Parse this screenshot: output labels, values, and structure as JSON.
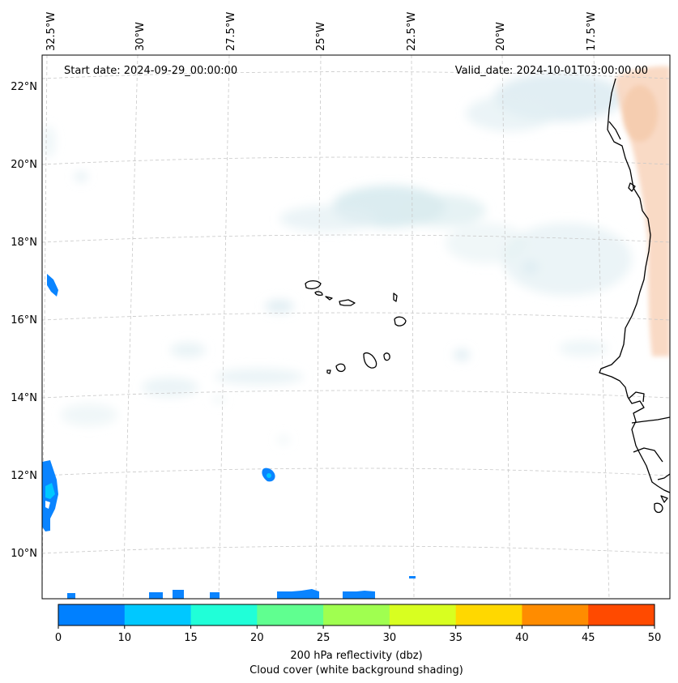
{
  "map": {
    "start_date": "Start date: 2024-09-29_00:00:00",
    "valid_date": "Valid_date: 2024-10-01T03:00:00.00",
    "lon_labels": [
      "32.5°W",
      "30°W",
      "27.5°W",
      "25°W",
      "22.5°W",
      "20°W",
      "17.5°W"
    ],
    "lat_labels": [
      "22°N",
      "20°N",
      "18°N",
      "16°N",
      "14°N",
      "12°N",
      "10°N"
    ]
  },
  "colorbar": {
    "ticks": [
      "0",
      "10",
      "15",
      "20",
      "25",
      "30",
      "35",
      "40",
      "45",
      "50"
    ],
    "colors": [
      "#0080ff",
      "#00c8ff",
      "#20ffd8",
      "#60ff90",
      "#a0ff50",
      "#d8ff20",
      "#ffd800",
      "#ff8c00",
      "#ff4a00"
    ],
    "label_line1": "200 hPa reflectivity (dbz)",
    "label_line2": "Cloud cover (white background shading)"
  },
  "colors": {
    "echo": "#0a84ff",
    "echo_core": "#00c8ff",
    "cloud": "#d2e6ec",
    "warm": "#f8d3bb",
    "grid": "#c8c8c8",
    "coast": "#000000"
  }
}
